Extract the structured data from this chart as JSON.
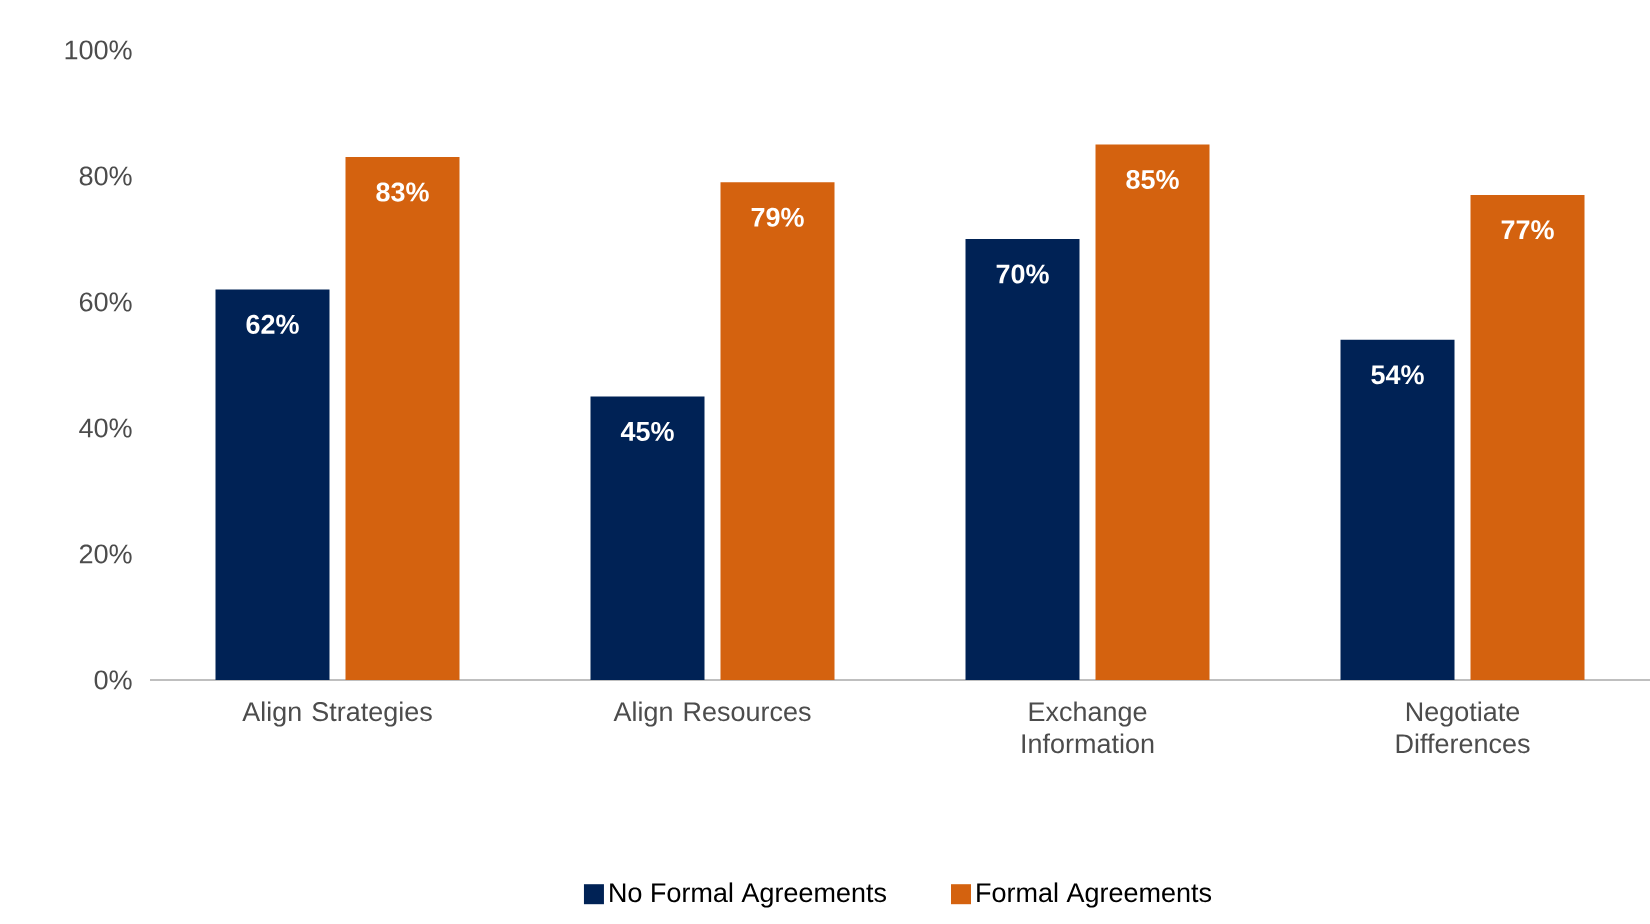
{
  "chart_data": {
    "type": "bar",
    "categories": [
      "Align Strategies",
      "Align Resources",
      "Exchange Information",
      "Negotiate Differences"
    ],
    "series": [
      {
        "name": "No Formal Agreements",
        "color": "#002255",
        "values": [
          62,
          45,
          70,
          54
        ],
        "value_labels": [
          "62%",
          "45%",
          "70%",
          "54%"
        ]
      },
      {
        "name": "Formal Agreements",
        "color": "#d4620f",
        "values": [
          83,
          79,
          85,
          77
        ],
        "value_labels": [
          "83%",
          "79%",
          "85%",
          "77%"
        ]
      }
    ],
    "ylim": [
      0,
      100
    ],
    "yticks": [
      {
        "value": 0,
        "label": "0%"
      },
      {
        "value": 20,
        "label": "20%"
      },
      {
        "value": 40,
        "label": "40%"
      },
      {
        "value": 60,
        "label": "60%"
      },
      {
        "value": 80,
        "label": "80%"
      },
      {
        "value": 100,
        "label": "100%"
      }
    ],
    "grid": false,
    "legend": "bottom"
  }
}
